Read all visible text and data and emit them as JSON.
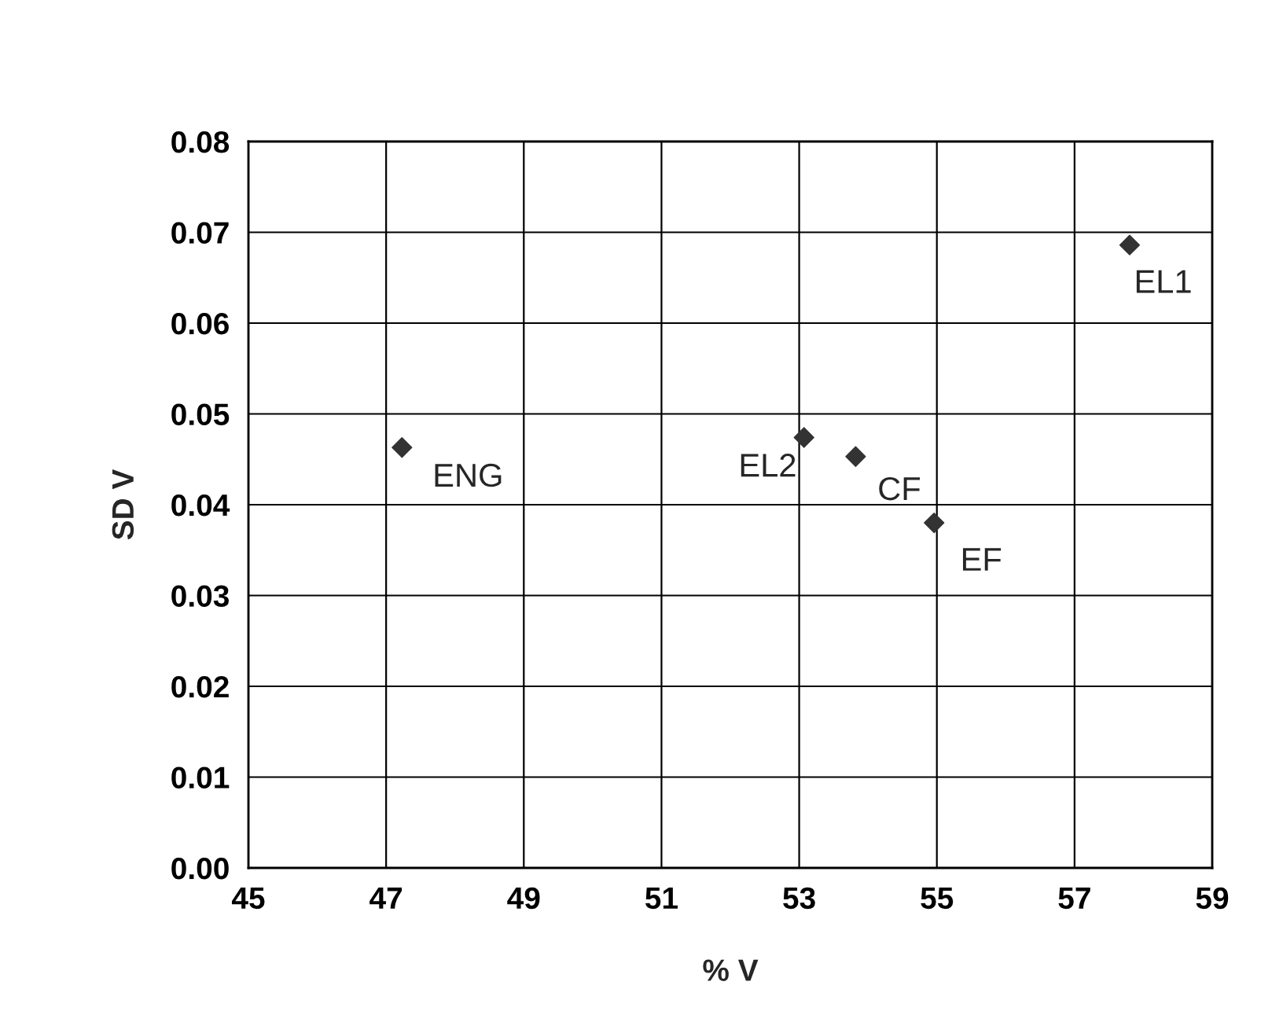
{
  "chart_data": {
    "type": "scatter",
    "xlabel": "% V",
    "ylabel": "SD V",
    "x": [
      47.23,
      53.07,
      53.82,
      54.96,
      57.8
    ],
    "series": [
      {
        "color": "#333333",
        "values": [
          0.0463,
          0.0474,
          0.0453,
          0.038,
          0.0686
        ]
      }
    ],
    "marker": "diamond",
    "grid": true,
    "xlim": [
      45,
      59
    ],
    "xticks": [
      45,
      47,
      49,
      51,
      53,
      55,
      57,
      59
    ],
    "ylim": [
      0,
      0.08
    ],
    "yticks": [
      {
        "value": 0,
        "label": "0.00"
      },
      {
        "value": 0.01,
        "label": "0.01"
      },
      {
        "value": 0.02,
        "label": "0.02"
      },
      {
        "value": 0.03,
        "label": "0.03"
      },
      {
        "value": 0.04,
        "label": "0.04"
      },
      {
        "value": 0.05,
        "label": "0.05"
      },
      {
        "value": 0.06,
        "label": "0.06"
      },
      {
        "value": 0.07,
        "label": "0.07"
      },
      {
        "value": 0.08,
        "label": "0.08"
      }
    ],
    "annotations": [
      {
        "text": "ENG",
        "x": 47.23,
        "y": 0.0463
      },
      {
        "text": "EL2",
        "x": 53.07,
        "y": 0.0474
      },
      {
        "text": "CF",
        "x": 53.82,
        "y": 0.0453
      },
      {
        "text": "EF",
        "x": 54.96,
        "y": 0.038
      },
      {
        "text": "EL1",
        "x": 57.8,
        "y": 0.0686
      }
    ]
  }
}
